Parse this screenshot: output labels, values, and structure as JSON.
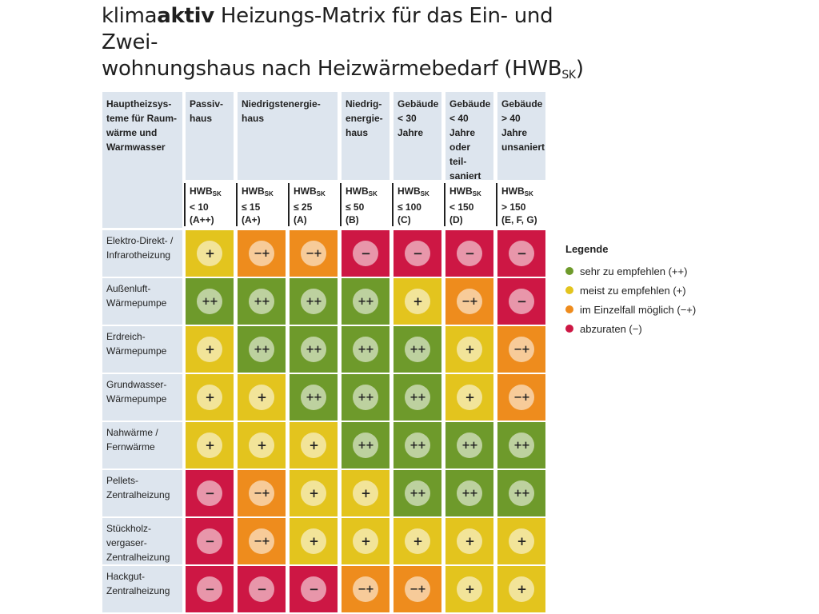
{
  "title": {
    "part1": "klima",
    "part2": "aktiv",
    "part3": " Heizungs-Matrix für das Ein- und Zwei-",
    "line2": "wohnungshaus nach Heizwärmebedarf (HWB",
    "line2_sub": "SK",
    "line2_end": ")"
  },
  "colors": {
    "green": "#6e9a2b",
    "yellow": "#e3c41e",
    "orange": "#ee8c1d",
    "red": "#cd1744",
    "header_bg": "#dde5ee"
  },
  "chart_data": {
    "type": "table",
    "corner_header": "Hauptheizsys-\nteme für Raum-\nwärme und\nWarmwasser",
    "column_groups": [
      {
        "label": "Passiv-\nhaus",
        "span": 1
      },
      {
        "label": "Niedrigstenergie-\nhaus",
        "span": 2
      },
      {
        "label": "Niedrig-\nenergie-\nhaus",
        "span": 1
      },
      {
        "label": "Gebäude\n< 30\nJahre",
        "span": 1
      },
      {
        "label": "Gebäude\n< 40\nJahre\noder teil-\nsaniert",
        "span": 1
      },
      {
        "label": "Gebäude\n> 40\nJahre\nunsaniert",
        "span": 1
      }
    ],
    "columns": [
      {
        "hwb": "HWB",
        "hwb_sub": "SK",
        "threshold": "< 10",
        "class": "(A++)"
      },
      {
        "hwb": "HWB",
        "hwb_sub": "SK",
        "threshold": "≤ 15",
        "class": "(A+)"
      },
      {
        "hwb": "HWB",
        "hwb_sub": "SK",
        "threshold": "≤ 25",
        "class": "(A)"
      },
      {
        "hwb": "HWB",
        "hwb_sub": "SK",
        "threshold": "≤ 50",
        "class": "(B)"
      },
      {
        "hwb": "HWB",
        "hwb_sub": "SK",
        "threshold": "≤ 100",
        "class": "(C)"
      },
      {
        "hwb": "HWB",
        "hwb_sub": "SK",
        "threshold": "< 150",
        "class": "(D)"
      },
      {
        "hwb": "HWB",
        "hwb_sub": "SK",
        "threshold": "> 150",
        "class": "(E, F, G)"
      }
    ],
    "rows": [
      {
        "label": "Elektro-Direkt- /\nInfrarotheizung",
        "ratings": [
          "+",
          "−+",
          "−+",
          "−",
          "−",
          "−",
          "−"
        ]
      },
      {
        "label": "Außenluft-\nWärmepumpe",
        "ratings": [
          "++",
          "++",
          "++",
          "++",
          "+",
          "−+",
          "−"
        ]
      },
      {
        "label": "Erdreich-\nWärmepumpe",
        "ratings": [
          "+",
          "++",
          "++",
          "++",
          "++",
          "+",
          "−+"
        ]
      },
      {
        "label": "Grundwasser-\nWärmepumpe",
        "ratings": [
          "+",
          "+",
          "++",
          "++",
          "++",
          "+",
          "−+"
        ]
      },
      {
        "label": "Nahwärme /\nFernwärme",
        "ratings": [
          "+",
          "+",
          "+",
          "++",
          "++",
          "++",
          "++"
        ]
      },
      {
        "label": "Pellets-\nZentralheizung",
        "ratings": [
          "−",
          "−+",
          "+",
          "+",
          "++",
          "++",
          "++"
        ]
      },
      {
        "label": "Stückholz-\nvergaser-\nZentralheizung",
        "ratings": [
          "−",
          "−+",
          "+",
          "+",
          "+",
          "+",
          "+"
        ]
      },
      {
        "label": "Hackgut-\nZentralheizung",
        "ratings": [
          "−",
          "−",
          "−",
          "−+",
          "−+",
          "+",
          "+"
        ]
      }
    ]
  },
  "legend": {
    "title": "Legende",
    "items": [
      {
        "key": "++",
        "label": "sehr zu empfehlen (++)",
        "color": "#6e9a2b"
      },
      {
        "key": "+",
        "label": "meist zu empfehlen (+)",
        "color": "#e3c41e"
      },
      {
        "key": "−+",
        "label": "im Einzelfall möglich (−+)",
        "color": "#ee8c1d"
      },
      {
        "key": "−",
        "label": "abzuraten (−)",
        "color": "#cd1744"
      }
    ]
  }
}
